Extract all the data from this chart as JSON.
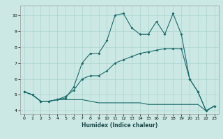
{
  "xlabel": "Humidex (Indice chaleur)",
  "bg_color": "#cce8e4",
  "grid_color": "#aad4cf",
  "line_color": "#1a6b6b",
  "xlim": [
    -0.5,
    23.5
  ],
  "ylim": [
    3.8,
    10.6
  ],
  "xticks": [
    0,
    1,
    2,
    3,
    4,
    5,
    6,
    7,
    8,
    9,
    10,
    11,
    12,
    13,
    14,
    15,
    16,
    17,
    18,
    19,
    20,
    21,
    22,
    23
  ],
  "yticks": [
    4,
    5,
    6,
    7,
    8,
    9,
    10
  ],
  "line1_x": [
    0,
    1,
    2,
    3,
    4,
    5,
    6,
    7,
    8,
    9,
    10,
    11,
    12,
    13,
    14,
    15,
    16,
    17,
    18,
    19,
    20,
    21,
    22,
    23
  ],
  "line1_y": [
    5.2,
    5.0,
    4.6,
    4.6,
    4.7,
    4.8,
    5.5,
    7.0,
    7.6,
    7.6,
    8.4,
    10.0,
    10.1,
    9.2,
    8.8,
    8.8,
    9.6,
    8.8,
    10.1,
    8.8,
    6.0,
    5.2,
    4.0,
    4.3
  ],
  "line2_x": [
    0,
    1,
    2,
    3,
    4,
    5,
    6,
    7,
    8,
    9,
    10,
    11,
    12,
    13,
    14,
    15,
    16,
    17,
    18,
    19,
    20,
    21,
    22,
    23
  ],
  "line2_y": [
    5.2,
    5.0,
    4.6,
    4.6,
    4.7,
    4.9,
    5.3,
    6.0,
    6.2,
    6.2,
    6.5,
    7.0,
    7.2,
    7.4,
    7.6,
    7.7,
    7.8,
    7.9,
    7.9,
    7.9,
    6.0,
    5.2,
    4.0,
    4.3
  ],
  "line3_x": [
    0,
    1,
    2,
    3,
    4,
    5,
    6,
    7,
    8,
    9,
    10,
    11,
    12,
    13,
    14,
    15,
    16,
    17,
    18,
    19,
    20,
    21,
    22,
    23
  ],
  "line3_y": [
    5.2,
    5.0,
    4.6,
    4.6,
    4.7,
    4.7,
    4.7,
    4.7,
    4.6,
    4.5,
    4.5,
    4.5,
    4.5,
    4.5,
    4.5,
    4.4,
    4.4,
    4.4,
    4.4,
    4.4,
    4.4,
    4.4,
    4.0,
    4.3
  ]
}
